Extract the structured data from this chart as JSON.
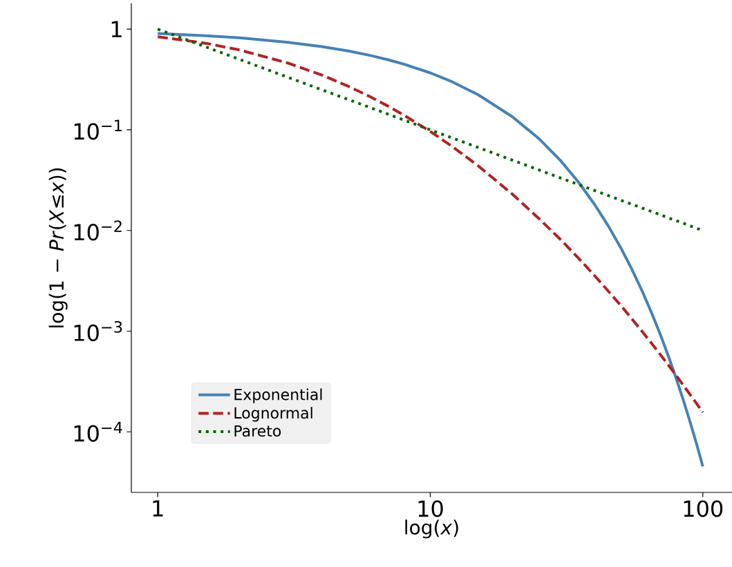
{
  "chart_data": {
    "type": "line",
    "xlabel": "log(*x*)",
    "ylabel": "log(1 − *Pr*(*X*≤*x*))",
    "x": [
      1,
      1.5,
      2,
      3,
      4,
      5,
      6,
      7,
      8,
      10,
      12,
      15,
      20,
      25,
      30,
      35,
      40,
      45,
      50,
      55,
      60,
      65,
      70,
      75,
      80,
      85,
      90,
      95,
      100
    ],
    "series": [
      {
        "name": "Exponential",
        "color": "#4682b4",
        "line_style": "solid",
        "values": [
          0.905,
          0.861,
          0.819,
          0.741,
          0.67,
          0.607,
          0.549,
          0.497,
          0.449,
          0.368,
          0.301,
          0.223,
          0.135,
          0.0821,
          0.0498,
          0.0302,
          0.0183,
          0.0111,
          0.00674,
          0.00409,
          0.00248,
          0.0015,
          0.000912,
          0.000553,
          0.000335,
          0.000203,
          0.000123,
          7.49e-05,
          4.54e-05
        ]
      },
      {
        "name": "Lognormal",
        "color": "#b22222",
        "line_style": "dashed",
        "values": [
          0.841,
          0.724,
          0.621,
          0.461,
          0.35,
          0.271,
          0.214,
          0.172,
          0.14,
          0.0963,
          0.0688,
          0.0438,
          0.023,
          0.0132,
          0.00817,
          0.00531,
          0.00358,
          0.0025,
          0.0018,
          0.00132,
          0.000988,
          0.000752,
          0.000581,
          0.000455,
          0.00036,
          0.000288,
          0.000233,
          0.00019,
          0.000156
        ]
      },
      {
        "name": "Pareto",
        "color": "#006400",
        "line_style": "dotted",
        "values": [
          1,
          0.667,
          0.5,
          0.333,
          0.25,
          0.2,
          0.167,
          0.143,
          0.125,
          0.1,
          0.0833,
          0.0667,
          0.05,
          0.04,
          0.0333,
          0.0286,
          0.025,
          0.0222,
          0.02,
          0.0182,
          0.0167,
          0.0154,
          0.0143,
          0.0133,
          0.0125,
          0.0118,
          0.0111,
          0.0105,
          0.01
        ]
      }
    ],
    "log": "xy",
    "xlim": [
      0.8,
      128
    ],
    "ylim": [
      2.5e-05,
      1.8
    ],
    "xticks": [
      1,
      10,
      100
    ],
    "yticks": [
      1,
      {
        "value": 0.1,
        "label": "10$^{−1}$"
      },
      {
        "value": 0.01,
        "label": "10$^{−2}$"
      },
      {
        "value": 0.001,
        "label": "10$^{−3}$"
      },
      {
        "value": 0.0001,
        "label": "10$^{−4}$"
      }
    ],
    "legend": "bottom left"
  }
}
